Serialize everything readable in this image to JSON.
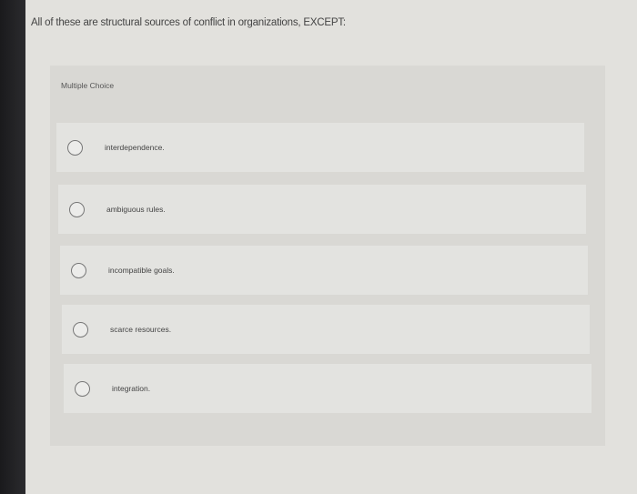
{
  "question": "All of these are structural sources of conflict in organizations, EXCEPT:",
  "type_label": "Multiple Choice",
  "options": [
    {
      "label": "interdependence.",
      "selected": false
    },
    {
      "label": "ambiguous rules.",
      "selected": false
    },
    {
      "label": "incompatible goals.",
      "selected": false
    },
    {
      "label": "scarce resources.",
      "selected": false
    },
    {
      "label": "integration.",
      "selected": false
    }
  ]
}
